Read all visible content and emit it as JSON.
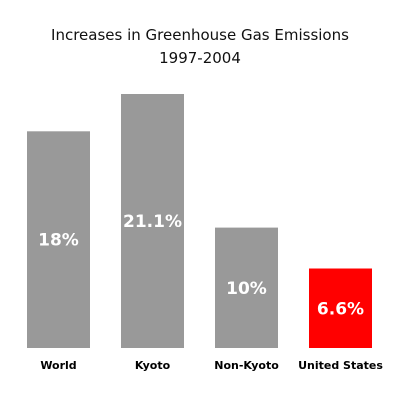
{
  "chart_data": {
    "type": "bar",
    "title": "Increases in Greenhouse Gas Emissions",
    "subtitle": "1997-2004",
    "xlabel": "",
    "ylabel": "",
    "categories": [
      "World",
      "Kyoto",
      "Non-Kyoto",
      "United States"
    ],
    "values": [
      18,
      21.1,
      10,
      6.6
    ],
    "value_labels": [
      "18%",
      "21.1%",
      "10%",
      "6.6%"
    ],
    "unit": "%",
    "bar_colors": [
      "#999999",
      "#999999",
      "#999999",
      "#ff0000"
    ],
    "ylim": [
      0,
      21.1
    ],
    "grid": false,
    "axes_visible": false
  }
}
